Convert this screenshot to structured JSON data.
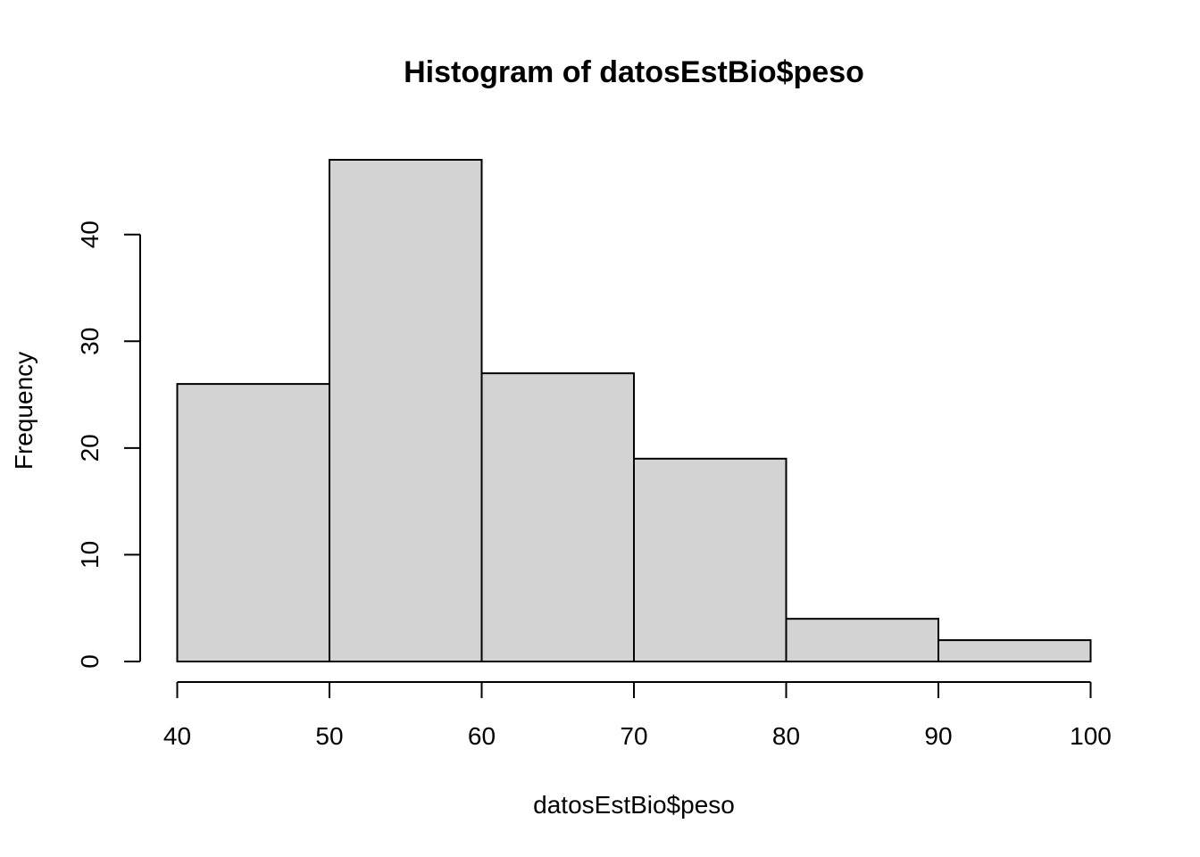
{
  "chart_data": {
    "type": "bar",
    "title": "Histogram of datosEstBio$peso",
    "xlabel": "datosEstBio$peso",
    "ylabel": "Frequency",
    "bins": [
      {
        "from": 40,
        "to": 50,
        "count": 26
      },
      {
        "from": 50,
        "to": 60,
        "count": 47
      },
      {
        "from": 60,
        "to": 70,
        "count": 27
      },
      {
        "from": 70,
        "to": 80,
        "count": 19
      },
      {
        "from": 80,
        "to": 90,
        "count": 4
      },
      {
        "from": 90,
        "to": 100,
        "count": 2
      }
    ],
    "xlim": [
      40,
      100
    ],
    "ylim": [
      0,
      47
    ],
    "x_ticks": [
      "40",
      "50",
      "60",
      "70",
      "80",
      "90",
      "100"
    ],
    "y_ticks": [
      "0",
      "10",
      "20",
      "30",
      "40"
    ],
    "bar_color": "#d3d3d3",
    "grid": false,
    "legend": "none"
  }
}
